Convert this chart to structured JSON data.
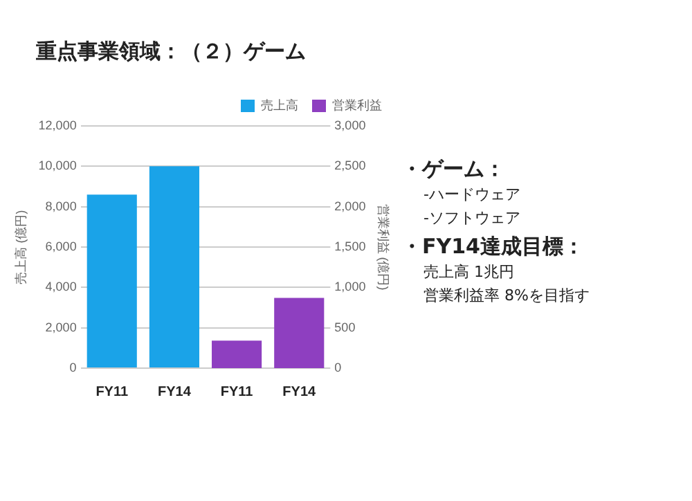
{
  "chart_data": {
    "type": "bar",
    "title": "重点事業領域：（２）ゲーム",
    "categories": [
      "FY11",
      "FY14",
      "FY11",
      "FY14"
    ],
    "series": [
      {
        "name": "売上高",
        "color": "#1aa3e8",
        "values": [
          8600,
          10000,
          null,
          null
        ]
      },
      {
        "name": "営業利益",
        "color": "#8e3fc0",
        "values": [
          null,
          null,
          340,
          870
        ],
        "axis": "y2"
      }
    ],
    "ylabel": "売上高 (億円)",
    "y2label": "営業利益 (億円)",
    "ylim": [
      0,
      12000
    ],
    "yticks": [
      {
        "value": 0,
        "label": "0"
      },
      {
        "value": 2000,
        "label": "2,000"
      },
      {
        "value": 4000,
        "label": "4,000"
      },
      {
        "value": 6000,
        "label": "6,000"
      },
      {
        "value": 8000,
        "label": "8,000"
      },
      {
        "value": 10000,
        "label": "10,000"
      },
      {
        "value": 12000,
        "label": "12,000"
      }
    ],
    "y2lim": [
      0,
      3000
    ],
    "y2ticks": [
      0,
      500,
      {
        "value": 1000,
        "label": "1,000"
      },
      {
        "value": 1500,
        "label": "1,500"
      },
      {
        "value": 2000,
        "label": "2,000"
      },
      {
        "value": 2500,
        "label": "2,500"
      },
      {
        "value": 3000,
        "label": "3,000"
      }
    ],
    "grid": "y",
    "legend": "top right",
    "annotations": [
      "・ゲーム：",
      "-ハードウェア",
      "-ソフトウェア",
      "・FY14達成目標：",
      "売上高 1兆円",
      "営業利益率 8%を目指す"
    ]
  }
}
